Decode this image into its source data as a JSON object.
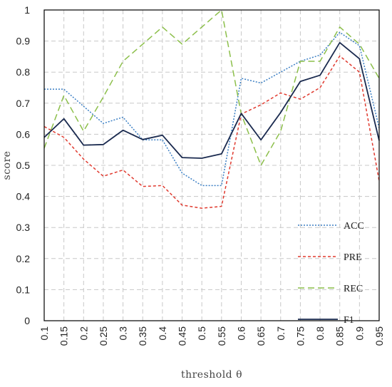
{
  "chart_data": {
    "type": "line",
    "title": "",
    "xlabel": "threshold θ",
    "ylabel": "score",
    "x": [
      0.1,
      0.15,
      0.2,
      0.25,
      0.3,
      0.35,
      0.4,
      0.45,
      0.5,
      0.55,
      0.6,
      0.65,
      0.7,
      0.75,
      0.8,
      0.85,
      0.9,
      0.95
    ],
    "x_tick_labels": [
      "0.1",
      "0.15",
      "0.2",
      "0.25",
      "0.3",
      "0.35",
      "0.4",
      "0.45",
      "0.5",
      "0.55",
      "0.6",
      "0.65",
      "0.7",
      "0.75",
      "0.8",
      "0.85",
      "0.9",
      "0.95"
    ],
    "xlim": [
      0.1,
      0.95
    ],
    "ylim": [
      0,
      1
    ],
    "y_ticks": [
      0,
      0.1,
      0.2,
      0.3,
      0.4,
      0.5,
      0.6,
      0.7,
      0.8,
      0.9,
      1
    ],
    "y_tick_labels": [
      "0",
      "0.1",
      "0.2",
      "0.3",
      "0.4",
      "0.5",
      "0.6",
      "0.7",
      "0.8",
      "0.9",
      "1"
    ],
    "grid": true,
    "legend_position": "bottom-right",
    "series": [
      {
        "name": "ACC",
        "color": "#3b7fc4",
        "dash": "dotted",
        "values": [
          0.745,
          0.745,
          0.69,
          0.635,
          0.655,
          0.582,
          0.582,
          0.475,
          0.435,
          0.435,
          0.78,
          0.765,
          0.8,
          0.835,
          0.855,
          0.928,
          0.885,
          0.62
        ]
      },
      {
        "name": "PRE",
        "color": "#e03a2f",
        "dash": "dashed",
        "values": [
          0.625,
          0.59,
          0.52,
          0.465,
          0.485,
          0.432,
          0.435,
          0.372,
          0.362,
          0.368,
          0.665,
          0.695,
          0.733,
          0.713,
          0.75,
          0.852,
          0.8,
          0.45
        ]
      },
      {
        "name": "REC",
        "color": "#8cbf4a",
        "dash": "longdash",
        "values": [
          0.555,
          0.725,
          0.61,
          0.72,
          0.835,
          0.89,
          0.945,
          0.89,
          0.945,
          1.0,
          0.665,
          0.5,
          0.61,
          0.835,
          0.835,
          0.945,
          0.89,
          0.78
        ]
      },
      {
        "name": "F1",
        "color": "#1a2a4f",
        "dash": "solid",
        "values": [
          0.59,
          0.65,
          0.565,
          0.567,
          0.613,
          0.583,
          0.597,
          0.525,
          0.523,
          0.537,
          0.667,
          0.582,
          0.67,
          0.77,
          0.79,
          0.895,
          0.843,
          0.58
        ]
      }
    ]
  }
}
